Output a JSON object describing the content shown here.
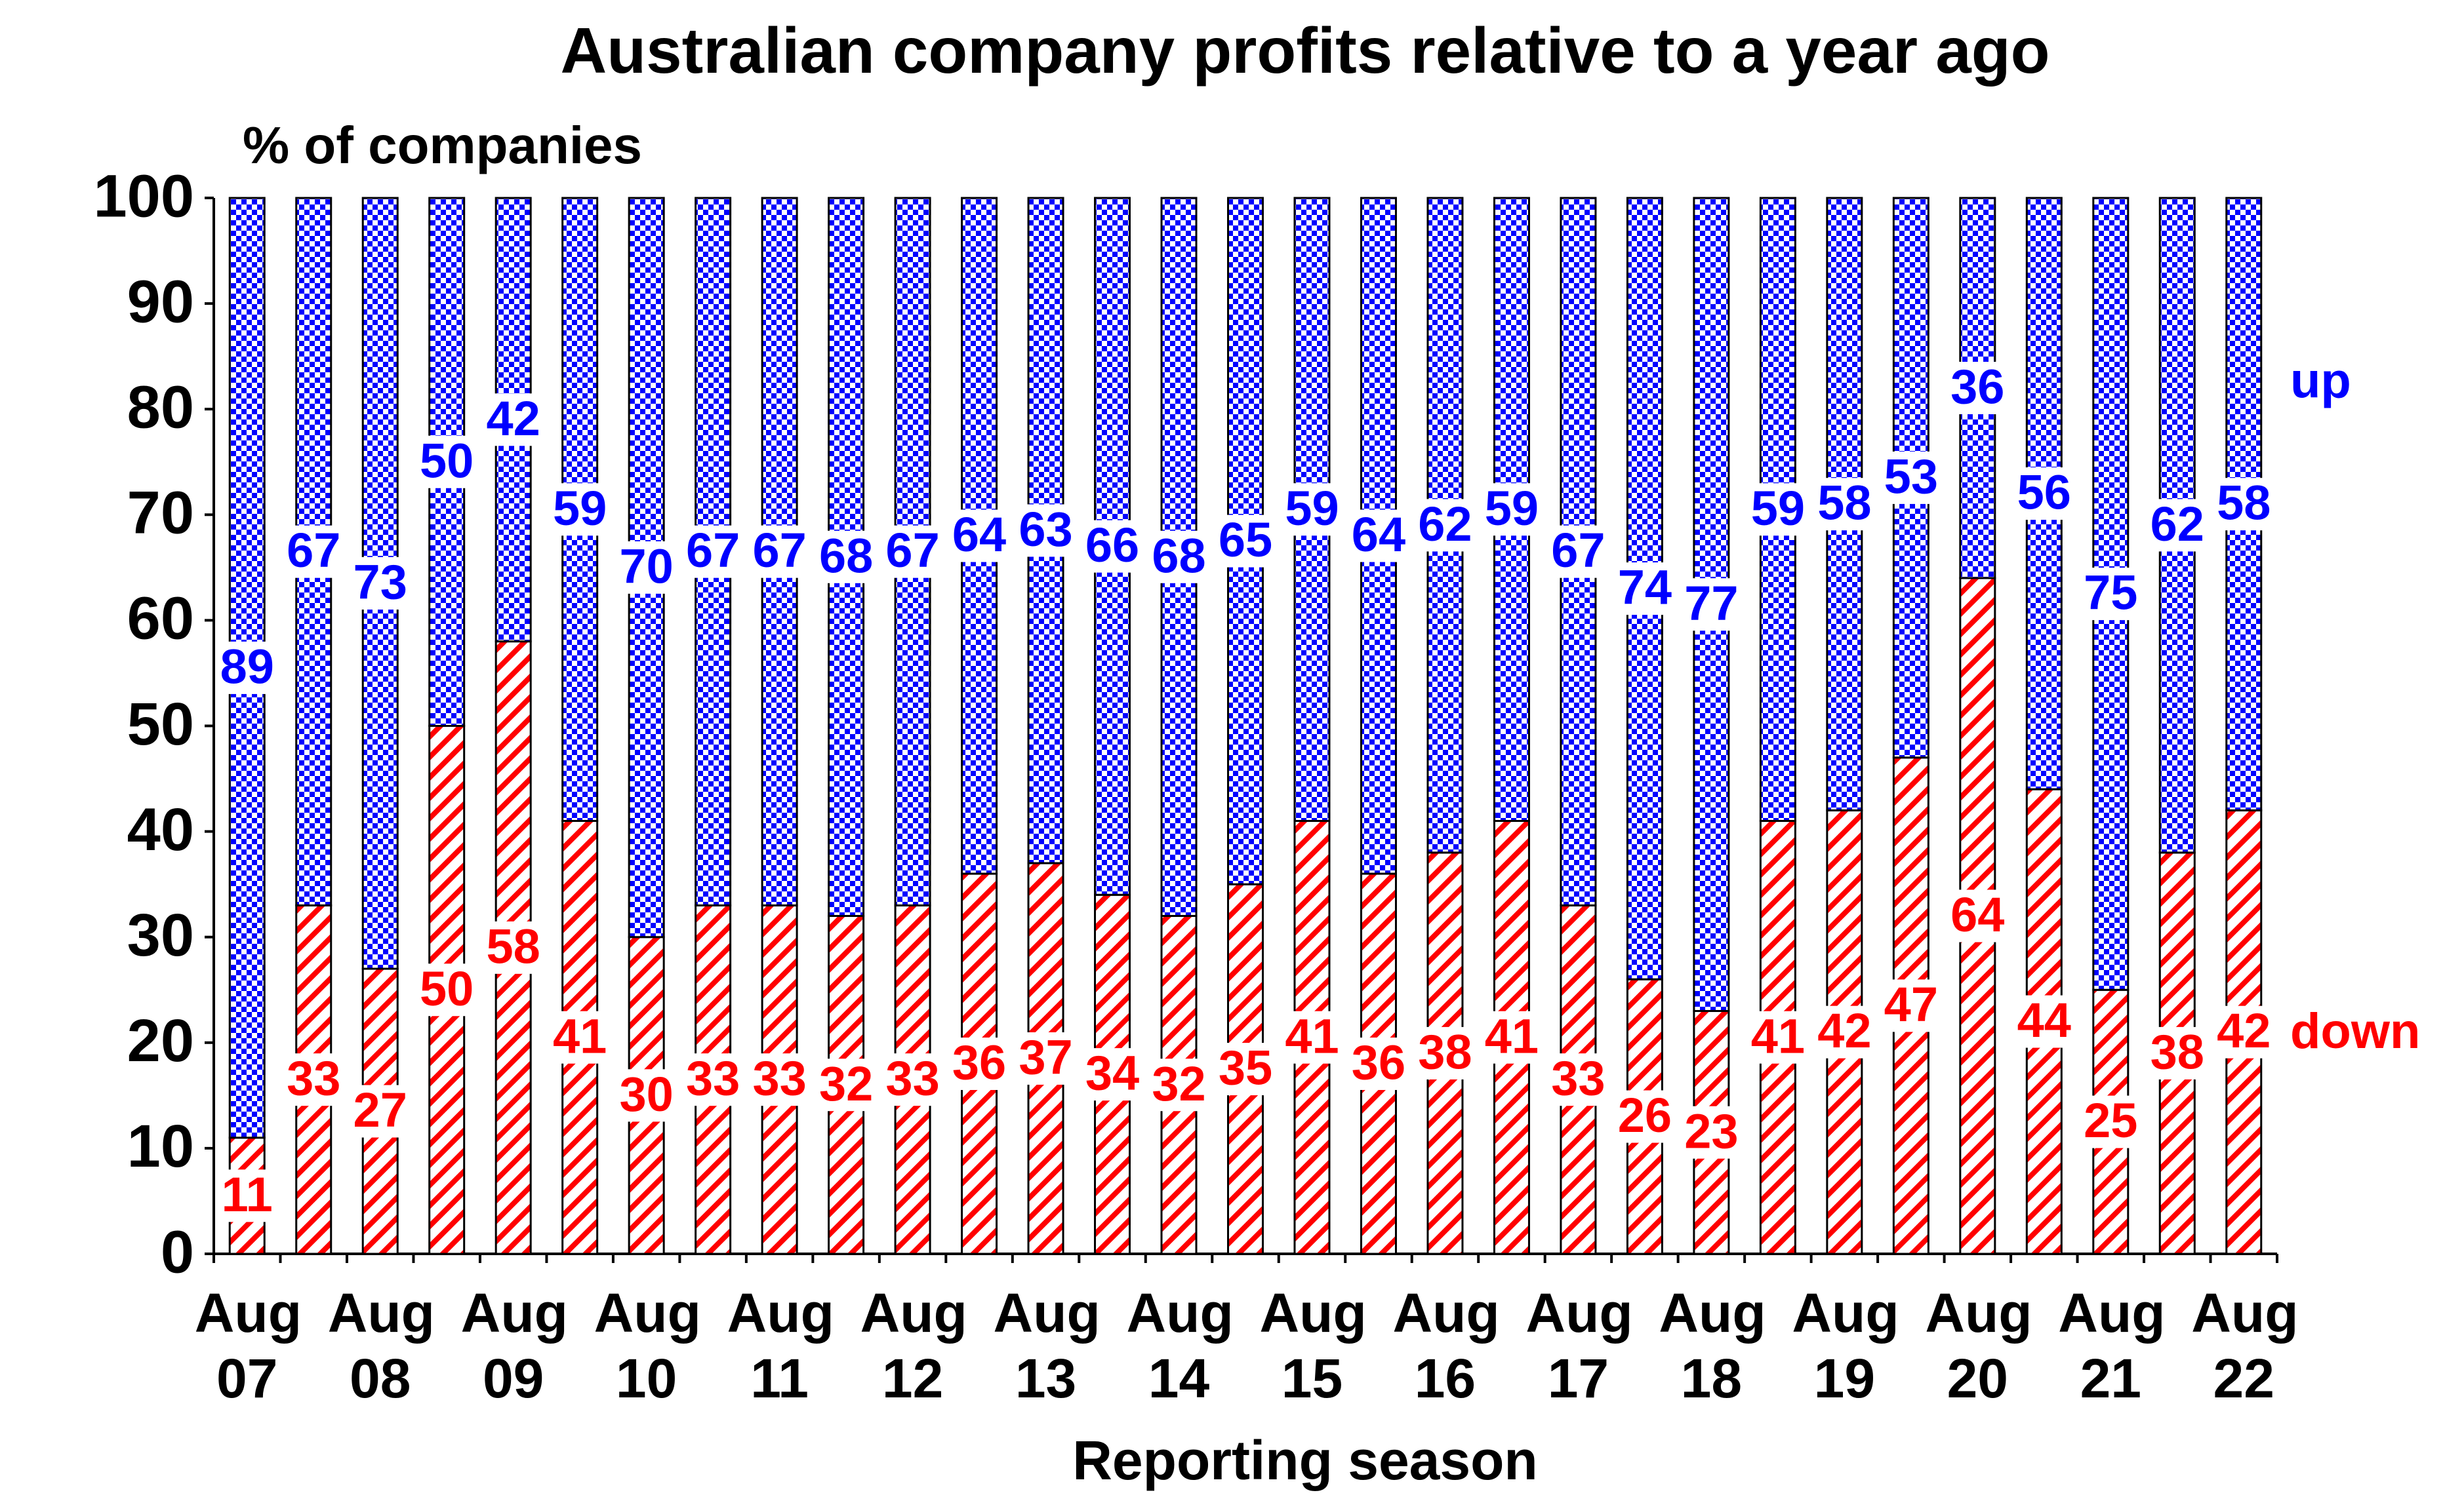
{
  "chart_data": {
    "type": "stacked_bar",
    "title": "Australian company profits relative to a year ago",
    "y_axis_label": "% of companies",
    "x_axis_label": "Reporting season",
    "categories": [
      "Aug 07",
      null,
      "Aug 08",
      null,
      "Aug 09",
      null,
      "Aug 10",
      null,
      "Aug 11",
      null,
      "Aug 12",
      null,
      "Aug 13",
      null,
      "Aug 14",
      null,
      "Aug 15",
      null,
      "Aug 16",
      null,
      "Aug 17",
      null,
      "Aug 18",
      null,
      "Aug 19",
      null,
      "Aug 20",
      null,
      "Aug 21",
      null,
      "Aug 22"
    ],
    "series": [
      {
        "name": "down",
        "color": "#ff0000",
        "values": [
          11,
          33,
          27,
          50,
          58,
          41,
          30,
          33,
          33,
          32,
          33,
          36,
          37,
          34,
          32,
          35,
          41,
          36,
          38,
          41,
          33,
          26,
          23,
          41,
          42,
          47,
          64,
          44,
          25,
          38,
          42
        ]
      },
      {
        "name": "up",
        "color": "#0000ff",
        "values": [
          89,
          67,
          73,
          50,
          42,
          59,
          70,
          67,
          67,
          68,
          67,
          64,
          63,
          66,
          68,
          65,
          59,
          64,
          62,
          59,
          67,
          74,
          77,
          59,
          58,
          53,
          36,
          56,
          75,
          62,
          58
        ]
      }
    ],
    "ylim": [
      0,
      100
    ],
    "yticks": [
      0,
      10,
      20,
      30,
      40,
      50,
      60,
      70,
      80,
      90,
      100
    ],
    "grid": false
  }
}
